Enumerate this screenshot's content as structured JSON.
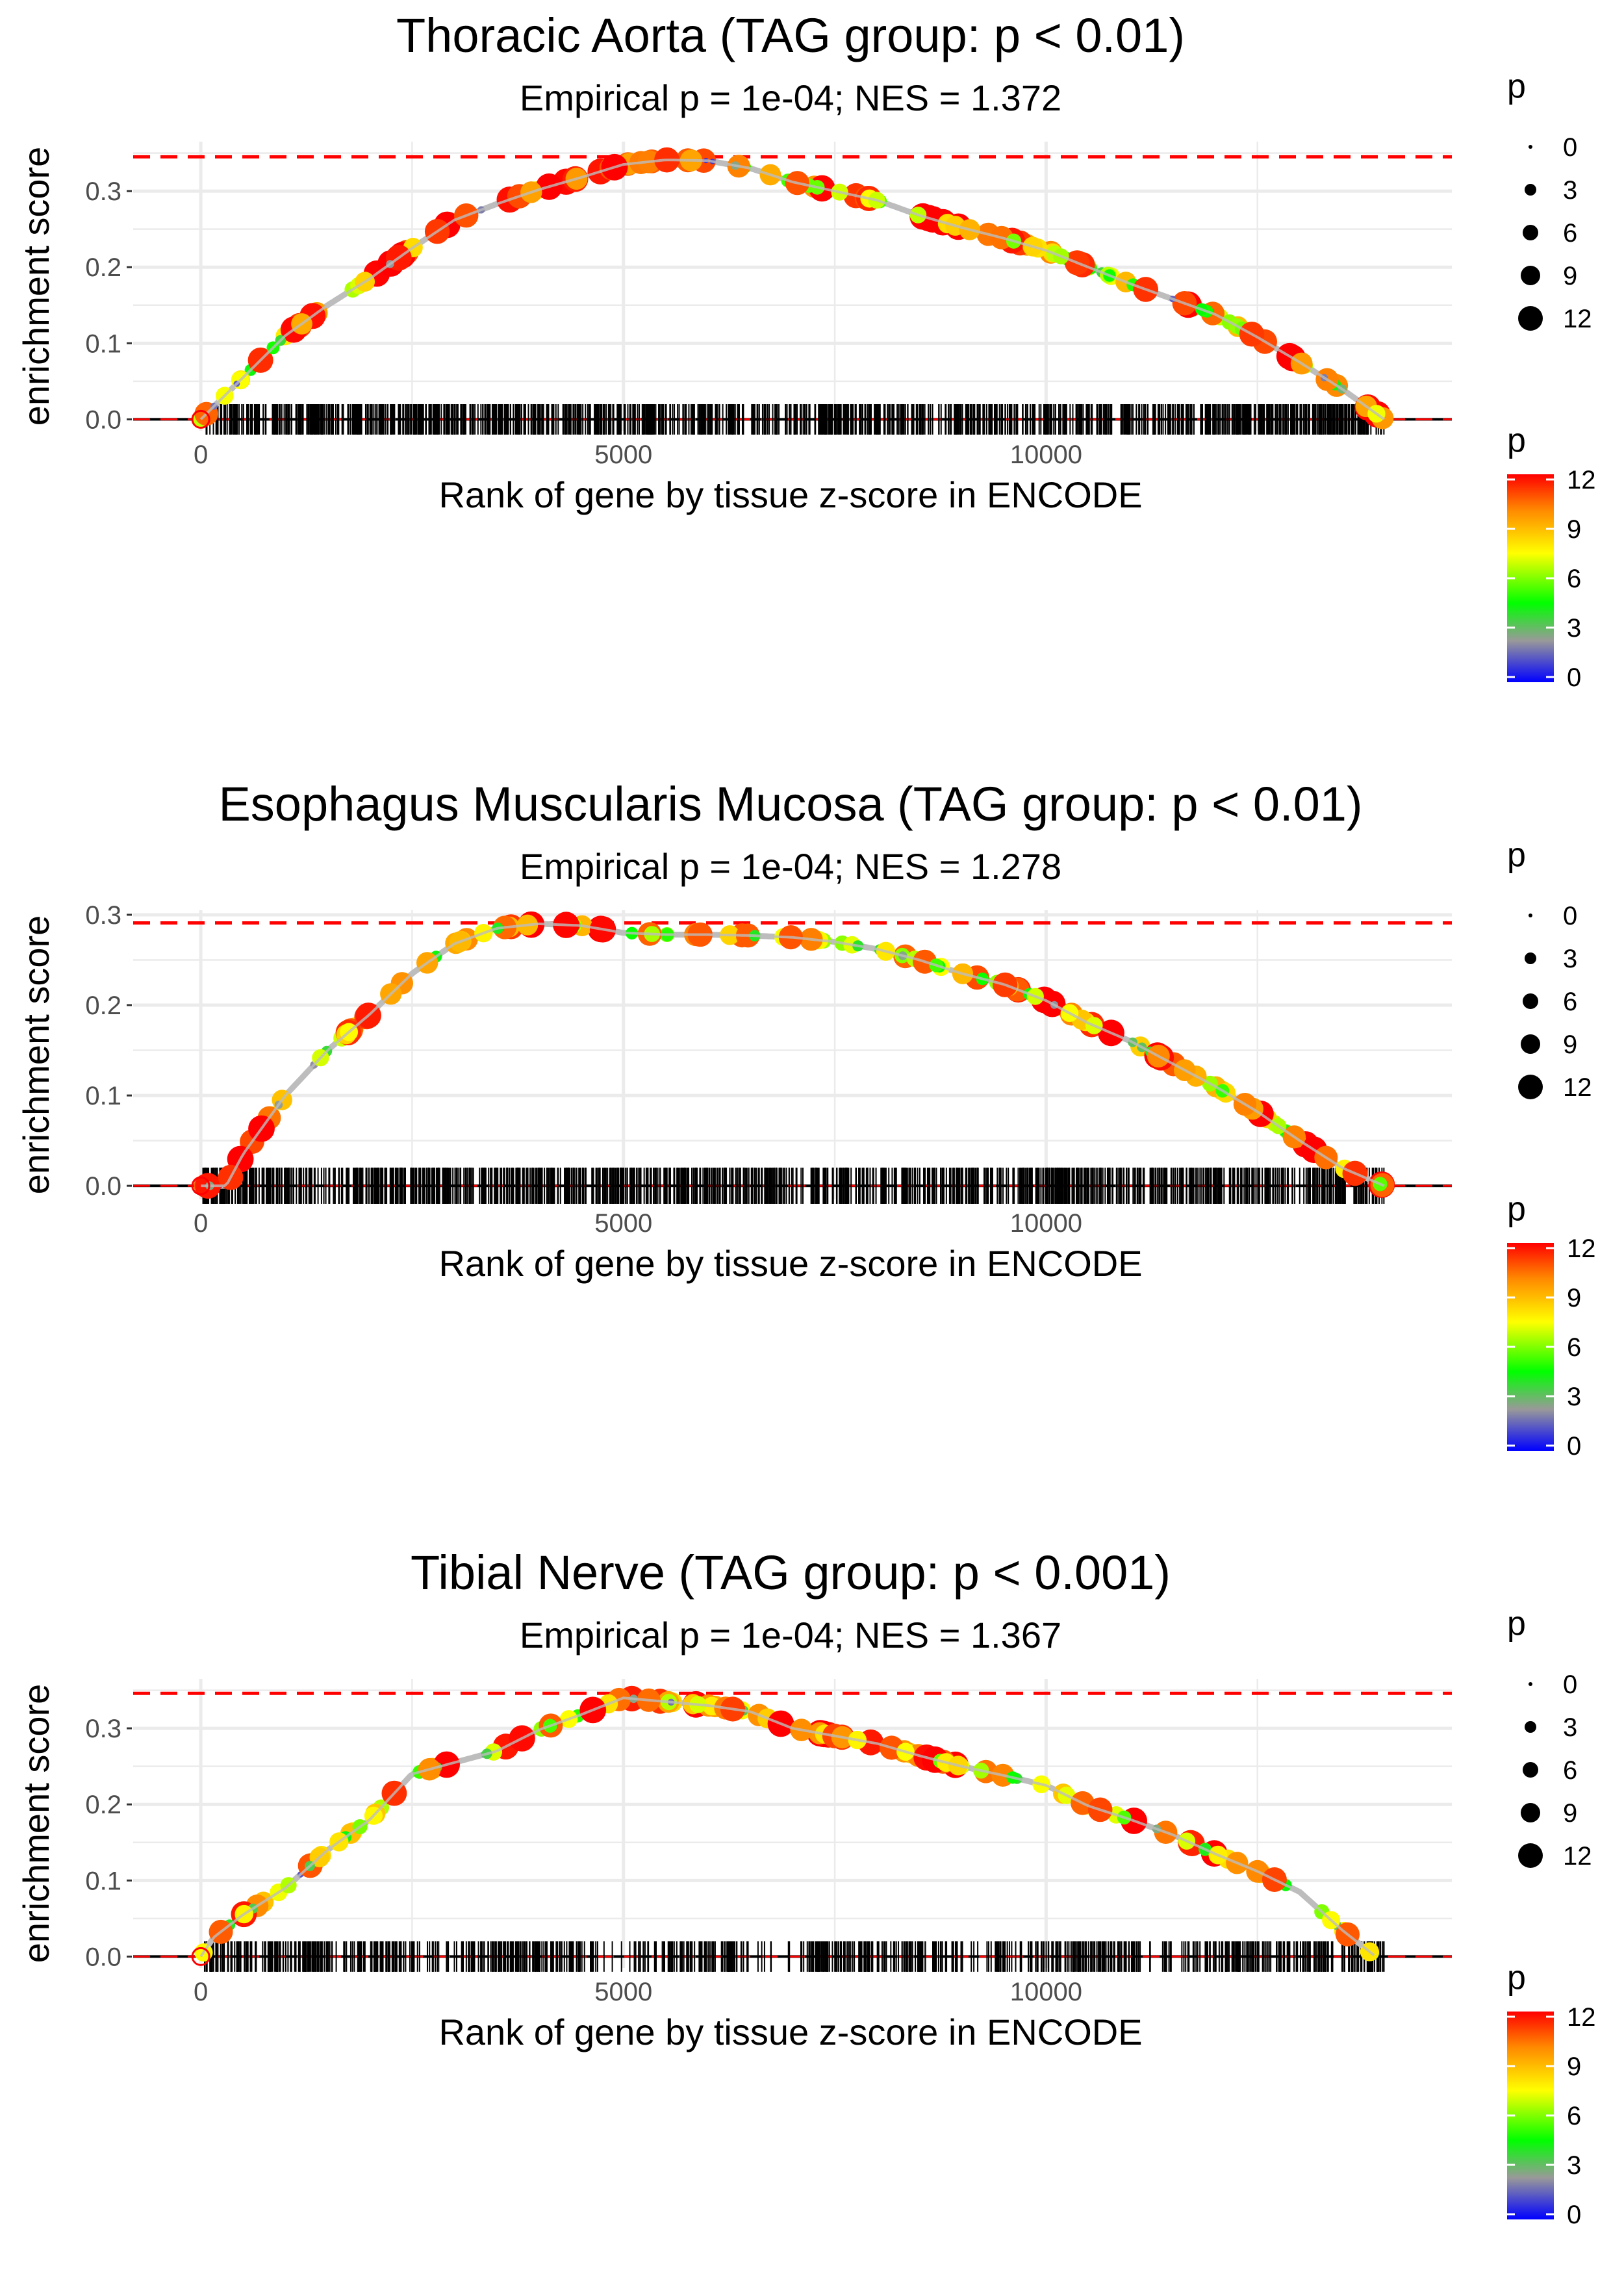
{
  "chart_data": [
    {
      "type": "line",
      "title": "Thoracic Aorta (TAG group: p < 0.01)",
      "subtitle": "Empirical p = 1e-04; NES = 1.372",
      "xlabel": "Rank of gene by tissue z-score in ENCODE",
      "ylabel": "enrichment score",
      "xlim": [
        -800,
        14800
      ],
      "ylim": [
        -0.015,
        0.365
      ],
      "xticks": [
        0,
        5000,
        10000
      ],
      "xtick_labels": [
        "0",
        "5000",
        "10000"
      ],
      "yticks": [
        0.0,
        0.1,
        0.2,
        0.3
      ],
      "ytick_labels": [
        "0.0",
        "0.1",
        "0.2",
        "0.3"
      ],
      "max_es": 0.345,
      "max_es_line_color": "#ff0000",
      "n_genes": 14000,
      "curve": [
        [
          0,
          0.0
        ],
        [
          500,
          0.055
        ],
        [
          1000,
          0.11
        ],
        [
          1500,
          0.15
        ],
        [
          2000,
          0.185
        ],
        [
          2500,
          0.225
        ],
        [
          3000,
          0.262
        ],
        [
          3500,
          0.283
        ],
        [
          4000,
          0.302
        ],
        [
          4500,
          0.318
        ],
        [
          5000,
          0.335
        ],
        [
          5500,
          0.341
        ],
        [
          6000,
          0.34
        ],
        [
          6500,
          0.33
        ],
        [
          7000,
          0.312
        ],
        [
          7500,
          0.3
        ],
        [
          8000,
          0.288
        ],
        [
          8500,
          0.268
        ],
        [
          9000,
          0.252
        ],
        [
          9500,
          0.238
        ],
        [
          10000,
          0.222
        ],
        [
          10500,
          0.2
        ],
        [
          11000,
          0.178
        ],
        [
          11500,
          0.158
        ],
        [
          12000,
          0.138
        ],
        [
          12500,
          0.108
        ],
        [
          13000,
          0.075
        ],
        [
          13500,
          0.04
        ],
        [
          14000,
          0.0
        ]
      ],
      "hit_count": 1150,
      "hit_gaps": [],
      "point_count": 170,
      "legend_size": {
        "title": "p",
        "labels": [
          "0",
          "3",
          "6",
          "9",
          "12"
        ]
      },
      "legend_color": {
        "title": "p",
        "labels": [
          "12",
          "9",
          "6",
          "3",
          "0"
        ],
        "colors": [
          "#ff0000",
          "#ff8800",
          "#ffff00",
          "#00ff00",
          "#999999",
          "#0000ff"
        ]
      }
    },
    {
      "type": "line",
      "title": "Esophagus Muscularis Mucosa (TAG group: p < 0.01)",
      "subtitle": "Empirical p = 1e-04; NES = 1.278",
      "xlabel": "Rank of gene by tissue z-score in ENCODE",
      "ylabel": "enrichment score",
      "xlim": [
        -800,
        14800
      ],
      "ylim": [
        -0.015,
        0.305
      ],
      "xticks": [
        0,
        5000,
        10000
      ],
      "xtick_labels": [
        "0",
        "5000",
        "10000"
      ],
      "yticks": [
        0.0,
        0.1,
        0.2,
        0.3
      ],
      "ytick_labels": [
        "0.0",
        "0.1",
        "0.2",
        "0.3"
      ],
      "max_es": 0.291,
      "max_es_line_color": "#ff0000",
      "n_genes": 14000,
      "curve": [
        [
          0,
          0.0
        ],
        [
          300,
          0.0
        ],
        [
          500,
          0.035
        ],
        [
          1000,
          0.1
        ],
        [
          1500,
          0.15
        ],
        [
          2000,
          0.19
        ],
        [
          2500,
          0.235
        ],
        [
          3000,
          0.268
        ],
        [
          3500,
          0.285
        ],
        [
          4000,
          0.29
        ],
        [
          4500,
          0.288
        ],
        [
          5000,
          0.28
        ],
        [
          5500,
          0.278
        ],
        [
          6000,
          0.278
        ],
        [
          6500,
          0.277
        ],
        [
          7000,
          0.275
        ],
        [
          7500,
          0.27
        ],
        [
          8000,
          0.262
        ],
        [
          8500,
          0.25
        ],
        [
          9000,
          0.235
        ],
        [
          9500,
          0.223
        ],
        [
          10000,
          0.205
        ],
        [
          10500,
          0.18
        ],
        [
          11000,
          0.16
        ],
        [
          11500,
          0.135
        ],
        [
          12000,
          0.11
        ],
        [
          12500,
          0.082
        ],
        [
          13000,
          0.05
        ],
        [
          13500,
          0.02
        ],
        [
          14000,
          0.0
        ]
      ],
      "hit_count": 1150,
      "hit_gaps": [],
      "point_count": 170,
      "legend_size": {
        "title": "p",
        "labels": [
          "0",
          "3",
          "6",
          "9",
          "12"
        ]
      },
      "legend_color": {
        "title": "p",
        "labels": [
          "12",
          "9",
          "6",
          "3",
          "0"
        ],
        "colors": [
          "#ff0000",
          "#ff8800",
          "#ffff00",
          "#00ff00",
          "#999999",
          "#0000ff"
        ]
      }
    },
    {
      "type": "line",
      "title": "Tibial Nerve (TAG group: p < 0.001)",
      "subtitle": "Empirical p = 1e-04; NES = 1.367",
      "xlabel": "Rank of gene by tissue z-score in ENCODE",
      "ylabel": "enrichment score",
      "xlim": [
        -800,
        14800
      ],
      "ylim": [
        -0.015,
        0.365
      ],
      "xticks": [
        0,
        5000,
        10000
      ],
      "xtick_labels": [
        "0",
        "5000",
        "10000"
      ],
      "yticks": [
        0.0,
        0.1,
        0.2,
        0.3
      ],
      "ytick_labels": [
        "0.0",
        "0.1",
        "0.2",
        "0.3"
      ],
      "max_es": 0.346,
      "max_es_line_color": "#ff0000",
      "n_genes": 14000,
      "curve": [
        [
          0,
          0.0
        ],
        [
          150,
          0.025
        ],
        [
          500,
          0.055
        ],
        [
          1000,
          0.09
        ],
        [
          1500,
          0.14
        ],
        [
          2000,
          0.18
        ],
        [
          2500,
          0.24
        ],
        [
          3000,
          0.255
        ],
        [
          3500,
          0.27
        ],
        [
          4000,
          0.298
        ],
        [
          4500,
          0.318
        ],
        [
          5000,
          0.34
        ],
        [
          5500,
          0.335
        ],
        [
          6000,
          0.33
        ],
        [
          6500,
          0.322
        ],
        [
          7000,
          0.3
        ],
        [
          7500,
          0.29
        ],
        [
          8000,
          0.28
        ],
        [
          8500,
          0.264
        ],
        [
          9000,
          0.25
        ],
        [
          9500,
          0.238
        ],
        [
          10000,
          0.225
        ],
        [
          10500,
          0.198
        ],
        [
          11000,
          0.18
        ],
        [
          11500,
          0.16
        ],
        [
          12000,
          0.135
        ],
        [
          12500,
          0.112
        ],
        [
          13000,
          0.085
        ],
        [
          13500,
          0.035
        ],
        [
          13900,
          0.0
        ]
      ],
      "hit_count": 950,
      "hit_gaps": [
        [
          2600,
          3000
        ],
        [
          4500,
          5100
        ],
        [
          6500,
          7200
        ],
        [
          9000,
          9400
        ],
        [
          11200,
          11600
        ]
      ],
      "point_count": 160,
      "legend_size": {
        "title": "p",
        "labels": [
          "0",
          "3",
          "6",
          "9",
          "12"
        ]
      },
      "legend_color": {
        "title": "p",
        "labels": [
          "12",
          "9",
          "6",
          "3",
          "0"
        ],
        "colors": [
          "#ff0000",
          "#ff8800",
          "#ffff00",
          "#00ff00",
          "#999999",
          "#0000ff"
        ]
      }
    }
  ]
}
